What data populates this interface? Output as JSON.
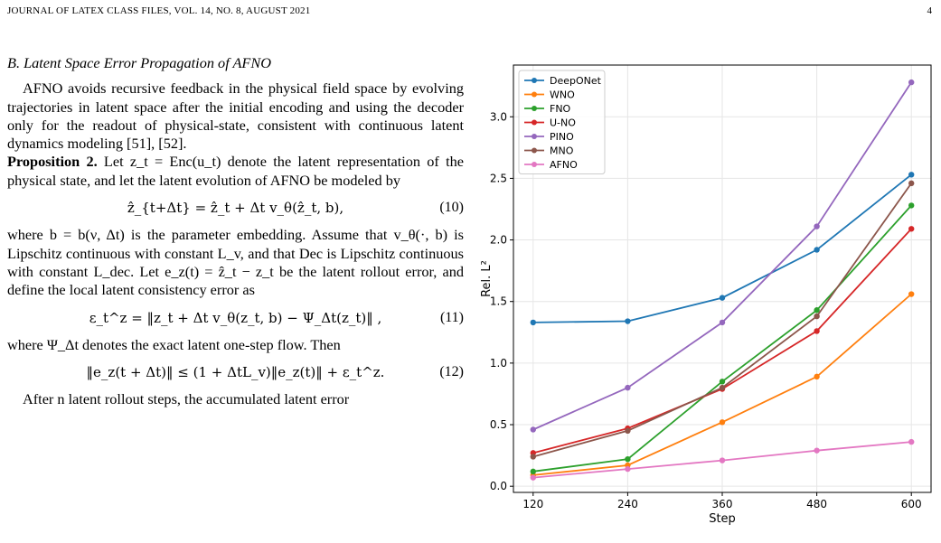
{
  "header": {
    "left": "JOURNAL OF LATEX CLASS FILES, VOL. 14, NO. 8, AUGUST 2021",
    "page": "4"
  },
  "section": {
    "title": "B. Latent Space Error Propagation of AFNO",
    "para1": "AFNO avoids recursive feedback in the physical field space by evolving trajectories in latent space after the initial encoding and using the decoder only for the readout of physical-state, consistent with continuous latent dynamics modeling [51], [52].",
    "prop_label": "Proposition 2.",
    "prop_text": "Let z_t = Enc(u_t) denote the latent representation of the physical state, and let the latent evolution of AFNO be modeled by",
    "eq10": "ẑ_{t+Δt} = ẑ_t + Δt v_θ(ẑ_t, b),",
    "eq10_num": "(10)",
    "para2": "where b = b(ν, Δt) is the parameter embedding. Assume that v_θ(·, b) is Lipschitz continuous with constant L_v, and that Dec is Lipschitz continuous with constant L_dec. Let e_z(t) = ẑ_t − z_t be the latent rollout error, and define the local latent consistency error as",
    "eq11": "ε_t^z = ‖z_t + Δt v_θ(z_t, b) − Ψ_Δt(z_t)‖ ,",
    "eq11_num": "(11)",
    "para3": "where Ψ_Δt denotes the exact latent one-step flow. Then",
    "eq12": "‖e_z(t + Δt)‖ ≤ (1 + ΔtL_v)‖e_z(t)‖ + ε_t^z.",
    "eq12_num": "(12)",
    "para4": "After n latent rollout steps, the accumulated latent error"
  },
  "chart_data": {
    "type": "line",
    "xlabel": "Step",
    "ylabel": "Rel. L²",
    "x": [
      120,
      240,
      360,
      480,
      600
    ],
    "xticks": [
      "120",
      "240",
      "360",
      "480",
      "600"
    ],
    "yticks": [
      "0.0",
      "0.5",
      "1.0",
      "1.5",
      "2.0",
      "2.5",
      "3.0"
    ],
    "xlim": [
      95,
      625
    ],
    "ylim": [
      -0.05,
      3.42
    ],
    "grid": true,
    "legend_position": "top-left",
    "series": [
      {
        "name": "DeepONet",
        "color": "#1f77b4",
        "values": [
          1.33,
          1.34,
          1.53,
          1.92,
          2.53
        ]
      },
      {
        "name": "WNO",
        "color": "#ff7f0e",
        "values": [
          0.09,
          0.17,
          0.52,
          0.89,
          1.56
        ]
      },
      {
        "name": "FNO",
        "color": "#2ca02c",
        "values": [
          0.12,
          0.22,
          0.85,
          1.43,
          2.28
        ]
      },
      {
        "name": "U-NO",
        "color": "#d62728",
        "values": [
          0.27,
          0.47,
          0.79,
          1.26,
          2.09
        ]
      },
      {
        "name": "PINO",
        "color": "#9467bd",
        "values": [
          0.46,
          0.8,
          1.33,
          2.11,
          3.28
        ]
      },
      {
        "name": "MNO",
        "color": "#8c564b",
        "values": [
          0.24,
          0.45,
          0.8,
          1.38,
          2.46
        ]
      },
      {
        "name": "AFNO",
        "color": "#e377c2",
        "values": [
          0.07,
          0.14,
          0.21,
          0.29,
          0.36
        ]
      }
    ]
  }
}
